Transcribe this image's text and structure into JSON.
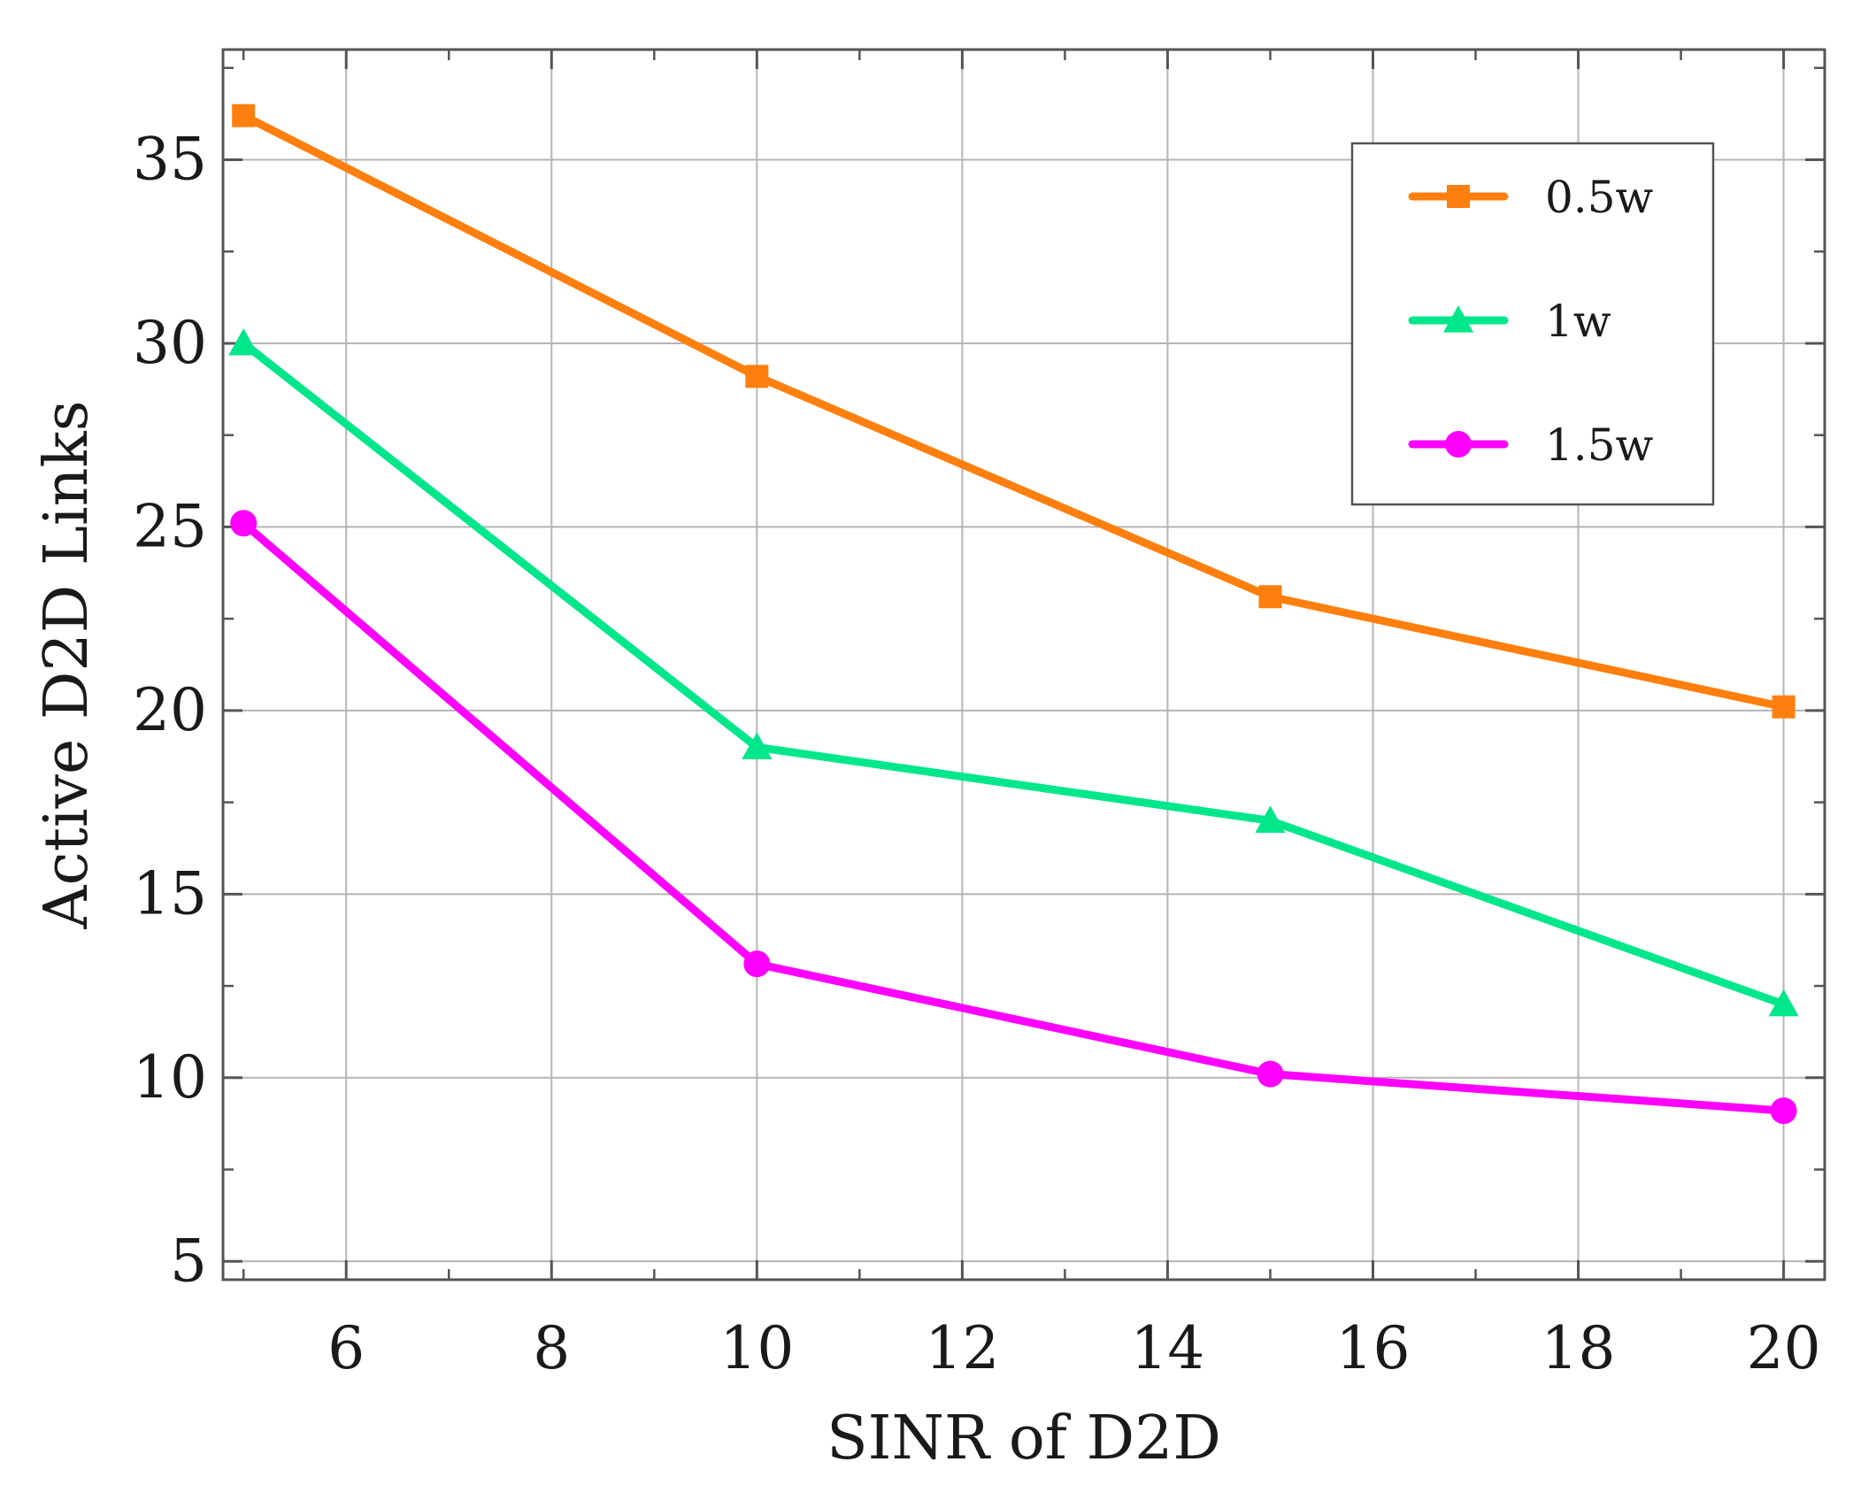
{
  "chart_data": {
    "type": "line",
    "title": "",
    "xlabel": "SINR of D2D",
    "ylabel": "Active D2D Links",
    "xlim": [
      4.8,
      20.4
    ],
    "ylim": [
      4.5,
      38
    ],
    "xticks": [
      6,
      8,
      10,
      12,
      14,
      16,
      18,
      20
    ],
    "yticks": [
      5,
      10,
      15,
      20,
      25,
      30,
      35
    ],
    "x_minor_ticks": [
      5,
      7,
      9,
      11,
      13,
      15,
      17,
      19
    ],
    "y_minor_ticks": [
      7.5,
      12.5,
      17.5,
      22.5,
      27.5,
      32.5,
      37.5
    ],
    "grid": true,
    "legend_position": "top-right",
    "x": [
      5,
      10,
      15,
      20
    ],
    "series": [
      {
        "name": "0.5w",
        "values": [
          36.2,
          29.1,
          23.1,
          20.1
        ],
        "color": "#ff7f0e",
        "marker": "square"
      },
      {
        "name": "1w",
        "values": [
          30,
          19,
          17,
          12
        ],
        "color": "#00e68a",
        "marker": "triangle"
      },
      {
        "name": "1.5w",
        "values": [
          25.1,
          13.1,
          10.1,
          9.1
        ],
        "color": "#ff00ff",
        "marker": "circle"
      }
    ]
  }
}
